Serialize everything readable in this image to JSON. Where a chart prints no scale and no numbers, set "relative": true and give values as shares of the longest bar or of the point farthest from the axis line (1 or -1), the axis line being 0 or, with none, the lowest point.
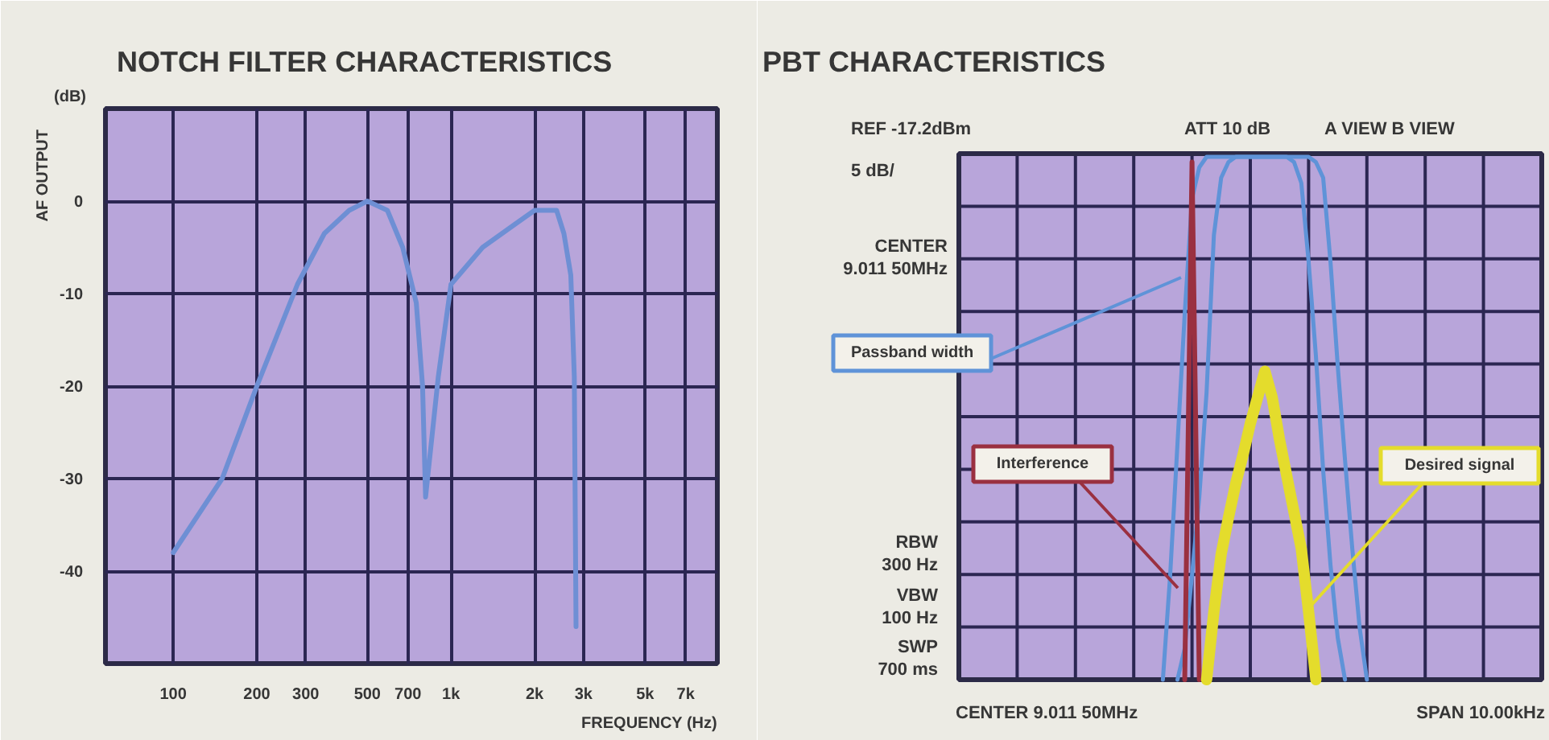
{
  "chart_data": [
    {
      "type": "line",
      "title": "NOTCH FILTER CHARACTERISTICS",
      "xlabel": "FREQUENCY (Hz)",
      "ylabel": "AF OUTPUT",
      "annotations": [
        "(dB)"
      ],
      "log": "x",
      "xlim": [
        57,
        9100
      ],
      "ylim": [
        -50,
        10
      ],
      "xticks": [
        100,
        200,
        300,
        500,
        700,
        {
          "value": 1000,
          "label": "1k"
        },
        {
          "value": 2000,
          "label": "2k"
        },
        {
          "value": 3000,
          "label": "3k"
        },
        {
          "value": 5000,
          "label": "5k"
        },
        {
          "value": 7000,
          "label": "7k"
        }
      ],
      "yticks": [
        -40,
        -30,
        -20,
        -10,
        0
      ],
      "grid": true,
      "x": [
        100,
        150,
        200,
        280,
        350,
        430,
        500,
        590,
        670,
        750,
        790,
        810,
        900,
        1000,
        1300,
        1700,
        2000,
        2400,
        2550,
        2700,
        2780,
        2820
      ],
      "series": [
        {
          "color": "#6e8fd4",
          "values": [
            -38,
            -30,
            -20,
            -9,
            -3.5,
            -1,
            0,
            -1,
            -5,
            -11,
            -20,
            -32,
            -19,
            -9,
            -5,
            -2.5,
            -1,
            -1,
            -3.5,
            -8,
            -19,
            -46
          ]
        }
      ]
    },
    {
      "type": "line",
      "title": "PBT CHARACTERISTICS",
      "relative": true,
      "grid": true,
      "annotations": [
        "REF -17.2dBm",
        "5 dB/",
        "ATT 10 dB",
        "A VIEW  B VIEW",
        "CENTER\n9.011 50MHz",
        "RBW\n300 Hz",
        "VBW\n100 Hz",
        "SWP\n700 ms",
        "CENTER 9.011 50MHz",
        "SPAN 10.00kHz"
      ],
      "categories": [
        null,
        null,
        null,
        null,
        null,
        null,
        null,
        null,
        null,
        null,
        null,
        null,
        null,
        null,
        null,
        null,
        null,
        null,
        null,
        null,
        null,
        null,
        null,
        null,
        null,
        null,
        null,
        null,
        null,
        null,
        null,
        null,
        null,
        null,
        null,
        null,
        null,
        null,
        null,
        null,
        null,
        null,
        null,
        null,
        null,
        null,
        null,
        null,
        null,
        null,
        null,
        null,
        null,
        null,
        null,
        null,
        null,
        null,
        null,
        null,
        null,
        null,
        null,
        null,
        null,
        null,
        null,
        null,
        null,
        null,
        null,
        null,
        null,
        null,
        null,
        null,
        null,
        null,
        null,
        null,
        null
      ],
      "series": [
        {
          "name": "Passband width",
          "color": "#5f93d8",
          "values": [
            null,
            null,
            null,
            null,
            null,
            null,
            null,
            null,
            null,
            null,
            null,
            null,
            null,
            null,
            null,
            null,
            null,
            null,
            null,
            null,
            null,
            null,
            null,
            null,
            null,
            null,
            null,
            null,
            0,
            0.2,
            0.45,
            0.7,
            0.92,
            0.98,
            1,
            1,
            1,
            1,
            1,
            1,
            1,
            1,
            1,
            1,
            1,
            1,
            0.99,
            0.95,
            0.8,
            0.62,
            0.4,
            0.22,
            0.08,
            0,
            null,
            null,
            null,
            null,
            null,
            null,
            null,
            null,
            null,
            null,
            null,
            null,
            null,
            null,
            null,
            null,
            null,
            null,
            null,
            null,
            null,
            null,
            null,
            null,
            null,
            null,
            null
          ]
        },
        {
          "color": "#5f93d8",
          "values": [
            null,
            null,
            null,
            null,
            null,
            null,
            null,
            null,
            null,
            null,
            null,
            null,
            null,
            null,
            null,
            null,
            null,
            null,
            null,
            null,
            null,
            null,
            null,
            null,
            null,
            null,
            null,
            null,
            null,
            null,
            0,
            0.06,
            0.2,
            0.35,
            0.55,
            0.85,
            0.96,
            0.99,
            1,
            1,
            1,
            1,
            1,
            1,
            1,
            1,
            1,
            1,
            1,
            0.99,
            0.96,
            0.8,
            0.6,
            0.42,
            0.25,
            0.1,
            0,
            null,
            null,
            null,
            null,
            null,
            null,
            null,
            null,
            null,
            null,
            null,
            null,
            null,
            null,
            null,
            null,
            null,
            null,
            null,
            null,
            null,
            null,
            null,
            null
          ]
        },
        {
          "name": "Interference",
          "color": "#9a3040",
          "values": [
            null,
            null,
            null,
            null,
            null,
            null,
            null,
            null,
            null,
            null,
            null,
            null,
            null,
            null,
            null,
            null,
            null,
            null,
            null,
            null,
            null,
            null,
            null,
            null,
            null,
            null,
            null,
            null,
            null,
            null,
            null,
            0,
            0.99,
            0,
            null,
            null,
            null,
            null,
            null,
            null,
            null,
            null,
            null,
            null,
            null,
            null,
            null,
            null,
            null,
            null,
            null,
            null,
            null,
            null,
            null,
            null,
            null,
            null,
            null,
            null,
            null,
            null,
            null,
            null,
            null,
            null,
            null,
            null,
            null,
            null,
            null,
            null,
            null,
            null,
            null,
            null,
            null,
            null,
            null,
            null,
            null
          ]
        },
        {
          "name": "Desired signal",
          "color": "#e4dc2c",
          "values": [
            null,
            null,
            null,
            null,
            null,
            null,
            null,
            null,
            null,
            null,
            null,
            null,
            null,
            null,
            null,
            null,
            null,
            null,
            null,
            null,
            null,
            null,
            null,
            null,
            null,
            null,
            null,
            null,
            null,
            null,
            null,
            null,
            null,
            null,
            0,
            0.13,
            0.24,
            0.31,
            0.375,
            0.43,
            0.49,
            0.54,
            0.59,
            0.54,
            0.46,
            0.39,
            0.32,
            0.25,
            0.13,
            0,
            null,
            null,
            null,
            null,
            null,
            null,
            null,
            null,
            null,
            null,
            null,
            null,
            null,
            null,
            null,
            null,
            null,
            null,
            null,
            null,
            null,
            null,
            null,
            null,
            null,
            null,
            null,
            null,
            null,
            null,
            null
          ]
        }
      ]
    }
  ]
}
